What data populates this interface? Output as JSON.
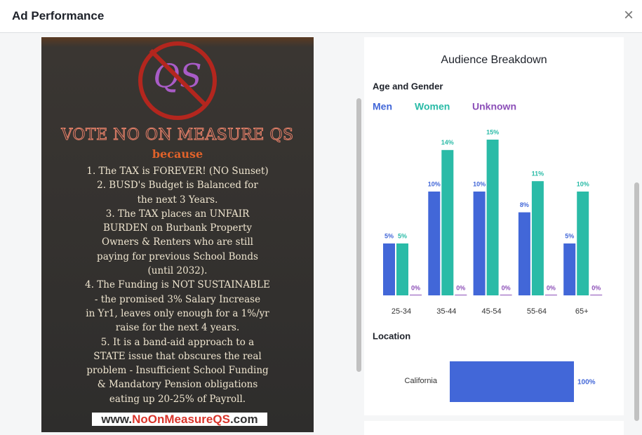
{
  "header": {
    "title": "Ad Performance",
    "close": "×"
  },
  "ad_image": {
    "logo": "QS",
    "headline": "VOTE NO ON MEASURE QS",
    "subhead": "because",
    "lines": [
      "1. The TAX is FOREVER! (NO Sunset)",
      "2. BUSD's Budget is Balanced for",
      "the next 3 Years.",
      "3. The TAX places an UNFAIR",
      "BURDEN on Burbank Property",
      "Owners & Renters who are still",
      "paying for previous School Bonds",
      "(until 2032).",
      "4. The Funding is NOT SUSTAINABLE",
      "- the promised 3% Salary Increase",
      "in Yr1, leaves only enough for a 1%/yr",
      "raise for the next 4 years.",
      "5. It is a band-aid approach to a",
      "STATE issue that obscures the real",
      "problem - Insufficient School Funding",
      "& Mandatory Pension obligations",
      "eating up 20-25% of Payroll."
    ],
    "url": [
      "www.",
      "NoOnMeasureQS",
      ".com"
    ]
  },
  "audience": {
    "title": "Audience Breakdown",
    "age_gender": {
      "type": "bar",
      "title": "Age and Gender",
      "categories": [
        "25-34",
        "35-44",
        "45-54",
        "55-64",
        "65+"
      ],
      "series": [
        {
          "name": "Men",
          "color": "#4267d8",
          "values": [
            5,
            10,
            10,
            8,
            5
          ],
          "value_labels": [
            "5%",
            "10%",
            "10%",
            "8%",
            "5%"
          ]
        },
        {
          "name": "Women",
          "color": "#2abba7",
          "values": [
            5,
            14,
            15,
            11,
            10
          ],
          "value_labels": [
            "5%",
            "14%",
            "15%",
            "11%",
            "10%"
          ]
        },
        {
          "name": "Unknown",
          "color": "#8c4fb8",
          "values": [
            0,
            0,
            0,
            0,
            0
          ],
          "value_labels": [
            "0%",
            "0%",
            "0%",
            "0%",
            "0%"
          ]
        }
      ]
    },
    "location": {
      "type": "barh",
      "title": "Location",
      "categories": [
        "California"
      ],
      "values": [
        100
      ],
      "value_labels": [
        "100%"
      ],
      "color": "#4267d8"
    }
  }
}
